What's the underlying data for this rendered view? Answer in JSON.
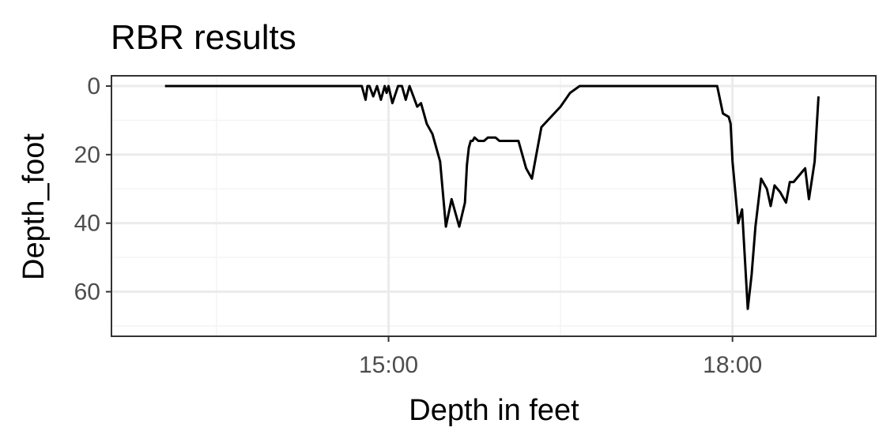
{
  "chart_data": {
    "type": "line",
    "title": "RBR results",
    "xlabel": "Depth in feet",
    "ylabel": "Depth_foot",
    "x_axis_kind": "time",
    "x_ticks": [
      "15:00",
      "18:00"
    ],
    "y_ticks": [
      0,
      20,
      40,
      60
    ],
    "xlim": [
      "12:35",
      "19:15"
    ],
    "ylim": [
      73,
      -3
    ],
    "y_reversed": true,
    "grid": true,
    "legend": "none",
    "colors": {
      "line": "#000000",
      "grid_major": "#ebebeb",
      "grid_minor": "#f4f4f4",
      "panel_border": "#333333",
      "background": "#ffffff"
    },
    "series": [
      {
        "x": [
          "13:03",
          "13:15",
          "13:20",
          "13:25",
          "13:30",
          "13:38",
          "13:48",
          "14:00",
          "14:15",
          "14:30",
          "14:40",
          "14:46",
          "14:48",
          "14:49",
          "14:50",
          "14:52",
          "14:54",
          "14:56",
          "14:58",
          "14:59",
          "15:00",
          "15:02",
          "15:05",
          "15:07",
          "15:09",
          "15:11",
          "15:13",
          "15:15",
          "15:17",
          "15:20",
          "15:23",
          "15:27",
          "15:30",
          "15:33",
          "15:37",
          "15:40",
          "15:41",
          "15:42",
          "15:43",
          "15:44",
          "15:45",
          "15:47",
          "15:50",
          "15:52",
          "15:54",
          "15:56",
          "15:58",
          "16:00",
          "16:04",
          "16:05",
          "16:08",
          "16:12",
          "16:15",
          "16:20",
          "16:25",
          "16:30",
          "16:35",
          "16:40",
          "16:45",
          "16:50",
          "16:55",
          "17:00",
          "17:05",
          "17:10",
          "17:15",
          "17:20",
          "17:25",
          "17:30",
          "17:35",
          "17:40",
          "17:45",
          "17:47",
          "17:50",
          "17:52",
          "17:55",
          "17:58",
          "17:59",
          "18:00",
          "18:03",
          "18:05",
          "18:08",
          "18:10",
          "18:12",
          "18:15",
          "18:18",
          "18:20",
          "18:22",
          "18:25",
          "18:28",
          "18:30",
          "18:32",
          "18:35",
          "18:38",
          "18:40",
          "18:43",
          "18:45"
        ],
        "y": [
          0,
          0,
          0,
          0,
          0,
          0,
          0,
          0,
          0,
          0,
          0,
          0,
          4,
          0,
          0,
          3,
          0,
          4,
          0,
          2,
          0,
          5,
          0,
          0,
          4,
          0,
          3,
          6,
          5,
          11,
          14,
          22,
          41,
          33,
          41,
          34,
          23,
          18,
          16,
          16,
          15,
          16,
          16,
          15,
          15,
          15,
          16,
          16,
          16,
          16,
          16,
          24,
          27,
          12,
          9,
          6,
          2,
          0,
          0,
          0,
          0,
          0,
          0,
          0,
          0,
          0,
          0,
          0,
          0,
          0,
          0,
          0,
          0,
          0,
          8,
          9,
          11,
          22,
          40,
          36,
          65,
          55,
          41,
          27,
          30,
          35,
          29,
          31,
          34,
          28,
          28,
          26,
          24,
          33,
          22,
          3
        ]
      }
    ]
  }
}
